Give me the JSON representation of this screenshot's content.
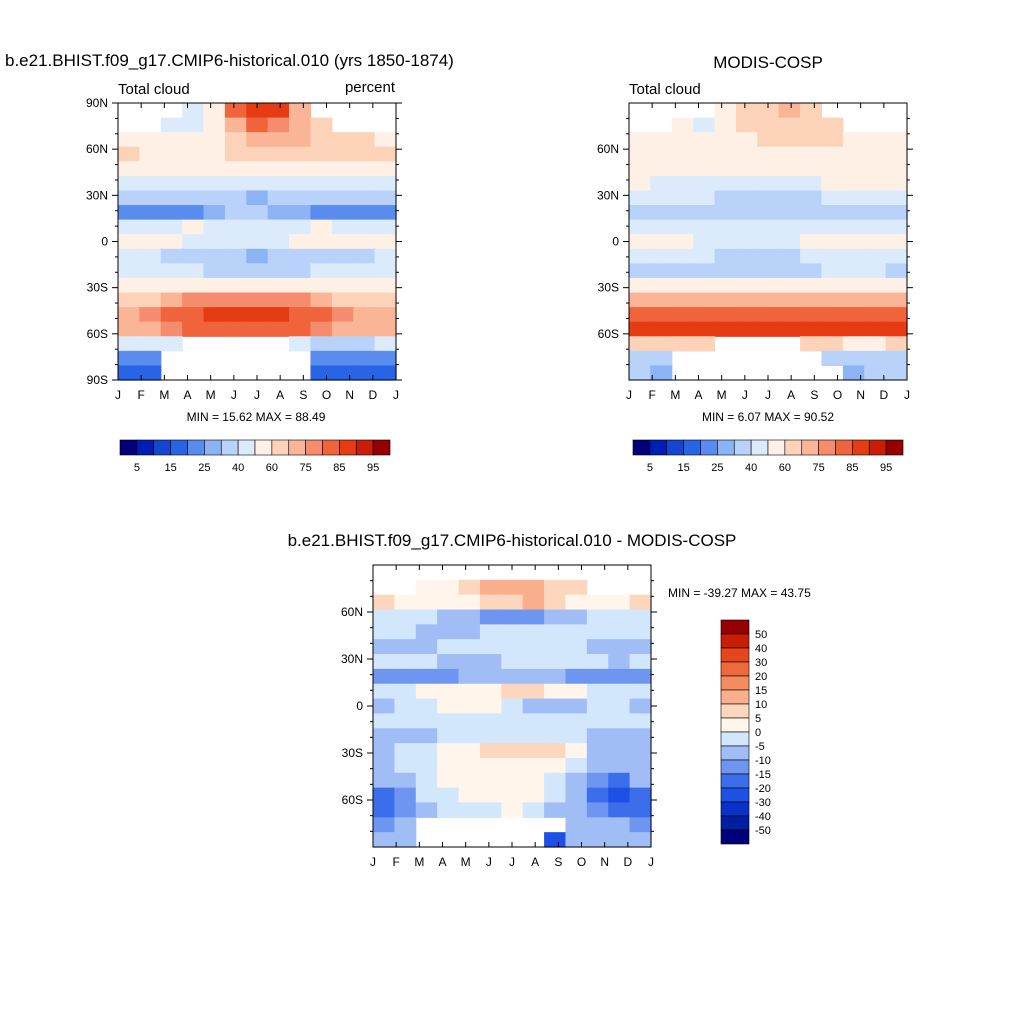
{
  "colors": {
    "abs_scale": [
      "#00007a",
      "#001eb4",
      "#1446d2",
      "#2864e6",
      "#5a8cf0",
      "#8cb4f5",
      "#b9d2fa",
      "#dcebfc",
      "#fff0e6",
      "#fcd2b9",
      "#fab496",
      "#f58c6e",
      "#f0643c",
      "#e63c14",
      "#c81e05",
      "#960000"
    ],
    "diff_scale": [
      "#00007a",
      "#001ea0",
      "#0a32c8",
      "#1e50e6",
      "#3c6eeb",
      "#6e96f0",
      "#a0bef5",
      "#d2e6fc",
      "#fff5eb",
      "#fcd7be",
      "#faaf8c",
      "#f58c5f",
      "#f0693c",
      "#e6461e",
      "#c81e05",
      "#960000"
    ],
    "text": "#000000",
    "frame": "#000000",
    "background": "#ffffff"
  },
  "panels": [
    {
      "id": "model",
      "title": "b.e21.BHIST.f09_g17.CMIP6-historical.010 (yrs 1850-1874)",
      "left_label": "Total cloud",
      "right_label": "percent",
      "stats": "MIN =  15.62 MAX =  88.49",
      "x_ticks": [
        "J",
        "F",
        "M",
        "A",
        "M",
        "J",
        "J",
        "A",
        "S",
        "O",
        "N",
        "D",
        "J"
      ],
      "y_ticks": [
        "90N",
        "60N",
        "30N",
        "0",
        "30S",
        "60S",
        "90S"
      ]
    },
    {
      "id": "obs",
      "title": "MODIS-COSP",
      "left_label": "Total cloud",
      "right_label": "",
      "stats": "MIN =   6.07 MAX =  90.52",
      "x_ticks": [
        "J",
        "F",
        "M",
        "A",
        "M",
        "J",
        "J",
        "A",
        "S",
        "O",
        "N",
        "D",
        "J"
      ],
      "y_ticks": [
        "60N",
        "30N",
        "0",
        "30S",
        "60S"
      ]
    },
    {
      "id": "diff",
      "title": "b.e21.BHIST.f09_g17.CMIP6-historical.010 - MODIS-COSP",
      "left_label": "",
      "right_label": "",
      "stats": "MIN = -39.27 MAX =  43.75",
      "x_ticks": [
        "J",
        "F",
        "M",
        "A",
        "M",
        "J",
        "J",
        "A",
        "S",
        "O",
        "N",
        "D",
        "J"
      ],
      "y_ticks": [
        "60N",
        "30N",
        "0",
        "30S",
        "60S"
      ]
    }
  ],
  "colorbars": {
    "abs_labels": [
      "5",
      "15",
      "25",
      "40",
      "60",
      "75",
      "85",
      "95"
    ],
    "diff_labels": [
      "50",
      "40",
      "30",
      "20",
      "15",
      "10",
      "5",
      "0",
      "-5",
      "-10",
      "-15",
      "-20",
      "-30",
      "-40",
      "-50"
    ]
  },
  "chart_data": [
    {
      "type": "heatmap",
      "title": "b.e21.BHIST.f09_g17.CMIP6-historical.010 (yrs 1850-1874)",
      "subtitle_left": "Total cloud",
      "subtitle_right": "percent",
      "x": [
        "Jan",
        "Feb",
        "Mar",
        "Apr",
        "May",
        "Jun",
        "Jul",
        "Aug",
        "Sep",
        "Oct",
        "Nov",
        "Dec",
        "Jan"
      ],
      "y_lat": [
        90,
        80,
        70,
        60,
        50,
        40,
        30,
        20,
        10,
        0,
        -10,
        -20,
        -30,
        -40,
        -50,
        -60,
        -70,
        -80,
        -90
      ],
      "values": [
        [
          null,
          null,
          null,
          45,
          58,
          80,
          86,
          86,
          70,
          null,
          null,
          null,
          null
        ],
        [
          null,
          null,
          40,
          45,
          55,
          72,
          80,
          78,
          70,
          66,
          null,
          null,
          null
        ],
        [
          58,
          57,
          56,
          56,
          58,
          66,
          70,
          72,
          70,
          66,
          64,
          62,
          58
        ],
        [
          60,
          58,
          57,
          55,
          56,
          60,
          64,
          68,
          66,
          62,
          60,
          60,
          60
        ],
        [
          52,
          52,
          51,
          50,
          50,
          52,
          55,
          58,
          58,
          55,
          54,
          53,
          52
        ],
        [
          45,
          45,
          45,
          44,
          42,
          40,
          40,
          42,
          44,
          45,
          45,
          45,
          45
        ],
        [
          38,
          38,
          38,
          36,
          33,
          30,
          28,
          30,
          32,
          34,
          36,
          38,
          38
        ],
        [
          24,
          22,
          20,
          22,
          26,
          30,
          30,
          28,
          26,
          24,
          22,
          22,
          24
        ],
        [
          40,
          44,
          48,
          50,
          48,
          45,
          42,
          44,
          48,
          50,
          48,
          44,
          40
        ],
        [
          52,
          55,
          50,
          45,
          40,
          40,
          45,
          48,
          50,
          52,
          50,
          52,
          52
        ],
        [
          40,
          40,
          38,
          34,
          30,
          30,
          28,
          30,
          32,
          34,
          36,
          38,
          40
        ],
        [
          40,
          40,
          40,
          40,
          38,
          38,
          38,
          38,
          38,
          40,
          40,
          40,
          40
        ],
        [
          50,
          50,
          52,
          54,
          55,
          55,
          55,
          55,
          54,
          52,
          50,
          50,
          50
        ],
        [
          66,
          68,
          72,
          76,
          78,
          78,
          78,
          78,
          76,
          72,
          68,
          66,
          66
        ],
        [
          72,
          76,
          80,
          84,
          86,
          86,
          86,
          86,
          84,
          80,
          76,
          72,
          72
        ],
        [
          70,
          74,
          78,
          82,
          84,
          84,
          84,
          84,
          82,
          78,
          74,
          70,
          70
        ],
        [
          40,
          40,
          40,
          null,
          null,
          null,
          null,
          null,
          40,
          38,
          36,
          38,
          40
        ],
        [
          22,
          22,
          null,
          null,
          null,
          null,
          null,
          null,
          null,
          20,
          20,
          20,
          22
        ],
        [
          18,
          18,
          null,
          null,
          null,
          null,
          null,
          null,
          null,
          18,
          16,
          16,
          18
        ]
      ],
      "ylim": [
        -90,
        90
      ],
      "min": 15.62,
      "max": 88.49
    },
    {
      "type": "heatmap",
      "title": "MODIS-COSP",
      "subtitle_left": "Total cloud",
      "x": [
        "Jan",
        "Feb",
        "Mar",
        "Apr",
        "May",
        "Jun",
        "Jul",
        "Aug",
        "Sep",
        "Oct",
        "Nov",
        "Dec",
        "Jan"
      ],
      "y_lat": [
        90,
        80,
        70,
        60,
        50,
        40,
        30,
        20,
        10,
        0,
        -10,
        -20,
        -30,
        -40,
        -50,
        -60,
        -70,
        -80,
        -90
      ],
      "values": [
        [
          null,
          null,
          null,
          null,
          58,
          64,
          66,
          70,
          66,
          null,
          null,
          null,
          null
        ],
        [
          null,
          null,
          50,
          45,
          55,
          60,
          64,
          66,
          64,
          60,
          null,
          null,
          null
        ],
        [
          56,
          54,
          53,
          52,
          54,
          56,
          60,
          62,
          62,
          60,
          58,
          56,
          56
        ],
        [
          56,
          55,
          54,
          53,
          52,
          54,
          56,
          58,
          58,
          56,
          56,
          56,
          56
        ],
        [
          55,
          54,
          52,
          50,
          50,
          50,
          52,
          54,
          56,
          56,
          54,
          55,
          55
        ],
        [
          50,
          48,
          48,
          46,
          44,
          42,
          42,
          44,
          48,
          50,
          50,
          50,
          50
        ],
        [
          44,
          42,
          40,
          40,
          36,
          34,
          34,
          36,
          38,
          40,
          42,
          44,
          44
        ],
        [
          36,
          34,
          34,
          36,
          38,
          38,
          38,
          38,
          36,
          36,
          36,
          36,
          36
        ],
        [
          40,
          42,
          44,
          45,
          44,
          42,
          42,
          42,
          44,
          46,
          44,
          42,
          40
        ],
        [
          50,
          52,
          50,
          48,
          46,
          45,
          46,
          48,
          50,
          52,
          52,
          50,
          50
        ],
        [
          42,
          42,
          42,
          40,
          38,
          36,
          36,
          38,
          40,
          42,
          42,
          42,
          42
        ],
        [
          38,
          38,
          38,
          38,
          36,
          36,
          36,
          36,
          38,
          40,
          40,
          40,
          38
        ],
        [
          58,
          58,
          58,
          58,
          58,
          58,
          58,
          58,
          58,
          58,
          58,
          58,
          58
        ],
        [
          72,
          72,
          72,
          72,
          72,
          72,
          72,
          72,
          72,
          72,
          72,
          72,
          72
        ],
        [
          80,
          80,
          80,
          80,
          80,
          80,
          80,
          80,
          80,
          80,
          80,
          80,
          80
        ],
        [
          88,
          88,
          88,
          88,
          88,
          88,
          88,
          88,
          88,
          88,
          88,
          88,
          88
        ],
        [
          60,
          60,
          62,
          66,
          null,
          null,
          null,
          null,
          66,
          60,
          58,
          58,
          60
        ],
        [
          38,
          30,
          null,
          null,
          null,
          null,
          null,
          null,
          null,
          30,
          30,
          34,
          38
        ],
        [
          30,
          28,
          null,
          null,
          null,
          null,
          null,
          null,
          null,
          null,
          28,
          30,
          30
        ]
      ],
      "ylim": [
        -90,
        90
      ],
      "min": 6.07,
      "max": 90.52
    },
    {
      "type": "heatmap",
      "title": "b.e21.BHIST.f09_g17.CMIP6-historical.010 - MODIS-COSP",
      "x": [
        "Jan",
        "Feb",
        "Mar",
        "Apr",
        "May",
        "Jun",
        "Jul",
        "Aug",
        "Sep",
        "Oct",
        "Nov",
        "Dec",
        "Jan"
      ],
      "y_lat": [
        90,
        80,
        70,
        60,
        50,
        40,
        30,
        20,
        10,
        0,
        -10,
        -20,
        -30,
        -40,
        -50,
        -60,
        -70,
        -80,
        -90
      ],
      "values": [
        [
          null,
          null,
          null,
          null,
          null,
          null,
          null,
          null,
          null,
          null,
          null,
          null,
          null
        ],
        [
          null,
          null,
          4,
          4,
          6,
          12,
          14,
          12,
          8,
          6,
          null,
          null,
          null
        ],
        [
          6,
          4,
          2,
          0,
          2,
          6,
          8,
          10,
          8,
          4,
          2,
          2,
          6
        ],
        [
          -2,
          -4,
          -4,
          -8,
          -10,
          -12,
          -14,
          -12,
          -8,
          -6,
          -4,
          -4,
          -2
        ],
        [
          -4,
          -4,
          -6,
          -6,
          -6,
          -4,
          -4,
          -4,
          -4,
          -2,
          -2,
          -4,
          -4
        ],
        [
          -6,
          -6,
          -6,
          -4,
          -4,
          -4,
          -2,
          -2,
          -2,
          -4,
          -6,
          -8,
          -6
        ],
        [
          -4,
          -4,
          -4,
          -6,
          -8,
          -6,
          -4,
          -4,
          -2,
          -2,
          -4,
          -6,
          -4
        ],
        [
          -14,
          -14,
          -14,
          -12,
          -10,
          -8,
          -8,
          -10,
          -10,
          -12,
          -14,
          -14,
          -14
        ],
        [
          -4,
          -2,
          0,
          2,
          2,
          4,
          6,
          6,
          4,
          0,
          -2,
          -4,
          -4
        ],
        [
          -6,
          -4,
          -4,
          2,
          2,
          2,
          -4,
          -8,
          -10,
          -8,
          -4,
          -4,
          -6
        ],
        [
          -4,
          -4,
          -4,
          -4,
          -4,
          -4,
          -4,
          -4,
          -4,
          -4,
          -4,
          -4,
          -4
        ],
        [
          -6,
          -6,
          -6,
          -4,
          -2,
          -2,
          -2,
          -2,
          -2,
          -4,
          -6,
          -8,
          -6
        ],
        [
          -6,
          -4,
          -2,
          2,
          4,
          6,
          8,
          8,
          6,
          0,
          -6,
          -8,
          -6
        ],
        [
          -6,
          -4,
          -2,
          2,
          4,
          4,
          4,
          4,
          2,
          -2,
          -6,
          -10,
          -6
        ],
        [
          -10,
          -6,
          -2,
          2,
          4,
          4,
          4,
          2,
          -2,
          -8,
          -12,
          -18,
          -10
        ],
        [
          -20,
          -12,
          -4,
          -2,
          0,
          2,
          2,
          0,
          -4,
          -10,
          -16,
          -22,
          -20
        ],
        [
          -18,
          -12,
          -6,
          -4,
          -2,
          -2,
          2,
          -4,
          -6,
          -8,
          -12,
          -16,
          -18
        ],
        [
          -14,
          -10,
          null,
          null,
          null,
          null,
          null,
          null,
          null,
          -10,
          -10,
          -8,
          -14
        ],
        [
          -8,
          -8,
          null,
          null,
          null,
          null,
          null,
          null,
          -30,
          -10,
          -6,
          -6,
          -8
        ]
      ],
      "ylim": [
        -90,
        90
      ],
      "min": -39.27,
      "max": 43.75
    }
  ]
}
